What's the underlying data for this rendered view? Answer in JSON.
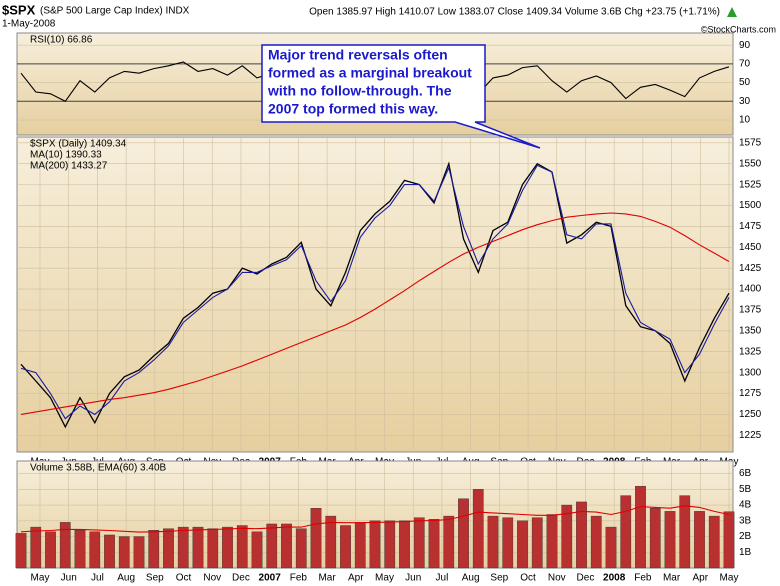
{
  "header": {
    "symbol": "$SPX",
    "name": "(S&P 500 Large Cap Index) INDX",
    "date": "1-May-2008",
    "quote": "Open 1385.97 High 1410.07 Low 1383.07 Close 1409.34 Volume 3.6B Chg +23.75 (+1.71%)",
    "credit": "©StockCharts.com"
  },
  "chart_data": [
    {
      "type": "line",
      "ylim": [
        -6,
        103
      ],
      "yticks": [
        90,
        70,
        50,
        30,
        10
      ],
      "ref_lines": [
        70,
        30
      ],
      "grid": true,
      "series": [
        {
          "name": "RSI(10) 66.86",
          "color": "#000000",
          "values": [
            60,
            40,
            38,
            30,
            52,
            40,
            55,
            62,
            60,
            65,
            68,
            72,
            62,
            65,
            58,
            68,
            55,
            60,
            62,
            66,
            30,
            42,
            58,
            70,
            70,
            66,
            68,
            50,
            45,
            62,
            35,
            38,
            55,
            58,
            66,
            68,
            52,
            40,
            52,
            57,
            50,
            33,
            45,
            48,
            42,
            35,
            55,
            62,
            66.86
          ]
        }
      ]
    },
    {
      "type": "line",
      "ylim": [
        1205,
        1582
      ],
      "yticks": [
        1575,
        1550,
        1525,
        1500,
        1475,
        1450,
        1425,
        1400,
        1375,
        1350,
        1325,
        1300,
        1275,
        1250,
        1225
      ],
      "grid": true,
      "xtick_labels": [
        "May",
        "Jun",
        "Jul",
        "Aug",
        "Sep",
        "Oct",
        "Nov",
        "Dec",
        "2007",
        "Feb",
        "Mar",
        "Apr",
        "May",
        "Jun",
        "Jul",
        "Aug",
        "Sep",
        "Oct",
        "Nov",
        "Dec",
        "2008",
        "Feb",
        "Mar",
        "Apr",
        "May"
      ],
      "annotation": [
        "Major trend reversals often",
        "formed as a marginal breakout",
        "with no follow-through. The",
        "2007 top formed this way."
      ],
      "series": [
        {
          "name": "$SPX (Daily) 1409.34",
          "color": "#000000",
          "values": [
            1310,
            1290,
            1270,
            1235,
            1270,
            1240,
            1275,
            1295,
            1303,
            1320,
            1335,
            1365,
            1378,
            1395,
            1400,
            1425,
            1418,
            1430,
            1438,
            1456,
            1400,
            1380,
            1420,
            1470,
            1490,
            1505,
            1530,
            1525,
            1503,
            1550,
            1460,
            1420,
            1470,
            1480,
            1525,
            1550,
            1540,
            1455,
            1465,
            1480,
            1475,
            1380,
            1355,
            1350,
            1335,
            1290,
            1330,
            1365,
            1395
          ]
        },
        {
          "name": "MA(10) 1390.33",
          "color": "#1a1aa6",
          "values": [
            1305,
            1300,
            1275,
            1245,
            1260,
            1250,
            1265,
            1290,
            1300,
            1315,
            1332,
            1360,
            1375,
            1390,
            1400,
            1420,
            1420,
            1428,
            1435,
            1452,
            1410,
            1385,
            1410,
            1462,
            1485,
            1500,
            1525,
            1525,
            1505,
            1545,
            1475,
            1430,
            1460,
            1478,
            1518,
            1548,
            1540,
            1465,
            1460,
            1478,
            1478,
            1395,
            1360,
            1350,
            1340,
            1300,
            1322,
            1358,
            1390
          ]
        },
        {
          "name": "MA(200) 1433.27",
          "color": "#e00000",
          "values": [
            1250,
            1253,
            1256,
            1259,
            1262,
            1265,
            1268,
            1270,
            1273,
            1276,
            1280,
            1285,
            1290,
            1296,
            1302,
            1308,
            1315,
            1322,
            1329,
            1336,
            1343,
            1350,
            1357,
            1366,
            1376,
            1387,
            1398,
            1410,
            1421,
            1432,
            1442,
            1450,
            1457,
            1464,
            1471,
            1477,
            1482,
            1486,
            1488,
            1490,
            1491,
            1490,
            1487,
            1481,
            1474,
            1464,
            1453,
            1443,
            1433
          ]
        }
      ]
    },
    {
      "type": "bar",
      "title": "Volume 3.58B, EMA(60) 3.40B",
      "ylim": [
        0,
        6.8
      ],
      "yticks": [
        {
          "value": 6,
          "label": "6B"
        },
        {
          "value": 5,
          "label": "5B"
        },
        {
          "value": 4,
          "label": "4B"
        },
        {
          "value": 3,
          "label": "3B"
        },
        {
          "value": 2,
          "label": "2B"
        },
        {
          "value": 1,
          "label": "1B"
        }
      ],
      "grid": true,
      "xtick_labels": [
        "May",
        "Jun",
        "Jul",
        "Aug",
        "Sep",
        "Oct",
        "Nov",
        "Dec",
        "2007",
        "Feb",
        "Mar",
        "Apr",
        "May",
        "Jun",
        "Jul",
        "Aug",
        "Sep",
        "Oct",
        "Nov",
        "Dec",
        "2008",
        "Feb",
        "Mar",
        "Apr",
        "May"
      ],
      "series": [
        {
          "kind": "bar",
          "color": "#b83030",
          "values": [
            2.2,
            2.6,
            2.3,
            2.9,
            2.4,
            2.3,
            2.1,
            2.0,
            2.0,
            2.4,
            2.5,
            2.6,
            2.6,
            2.5,
            2.6,
            2.7,
            2.3,
            2.8,
            2.8,
            2.5,
            3.8,
            3.3,
            2.7,
            2.9,
            3.0,
            3.0,
            3.0,
            3.2,
            3.1,
            3.3,
            4.4,
            5.0,
            3.3,
            3.2,
            3.0,
            3.2,
            3.4,
            4.0,
            4.2,
            3.3,
            2.6,
            4.6,
            5.2,
            3.8,
            3.6,
            4.6,
            3.6,
            3.3,
            3.58
          ]
        },
        {
          "kind": "line",
          "color": "#e00000",
          "values": [
            2.3,
            2.35,
            2.38,
            2.45,
            2.45,
            2.42,
            2.38,
            2.33,
            2.28,
            2.3,
            2.33,
            2.38,
            2.42,
            2.45,
            2.48,
            2.52,
            2.5,
            2.55,
            2.6,
            2.6,
            2.8,
            2.9,
            2.88,
            2.88,
            2.9,
            2.92,
            2.95,
            3.0,
            3.02,
            3.08,
            3.3,
            3.55,
            3.5,
            3.45,
            3.4,
            3.35,
            3.35,
            3.45,
            3.6,
            3.55,
            3.4,
            3.6,
            3.9,
            3.85,
            3.8,
            3.95,
            3.85,
            3.6,
            3.4
          ]
        }
      ]
    }
  ]
}
